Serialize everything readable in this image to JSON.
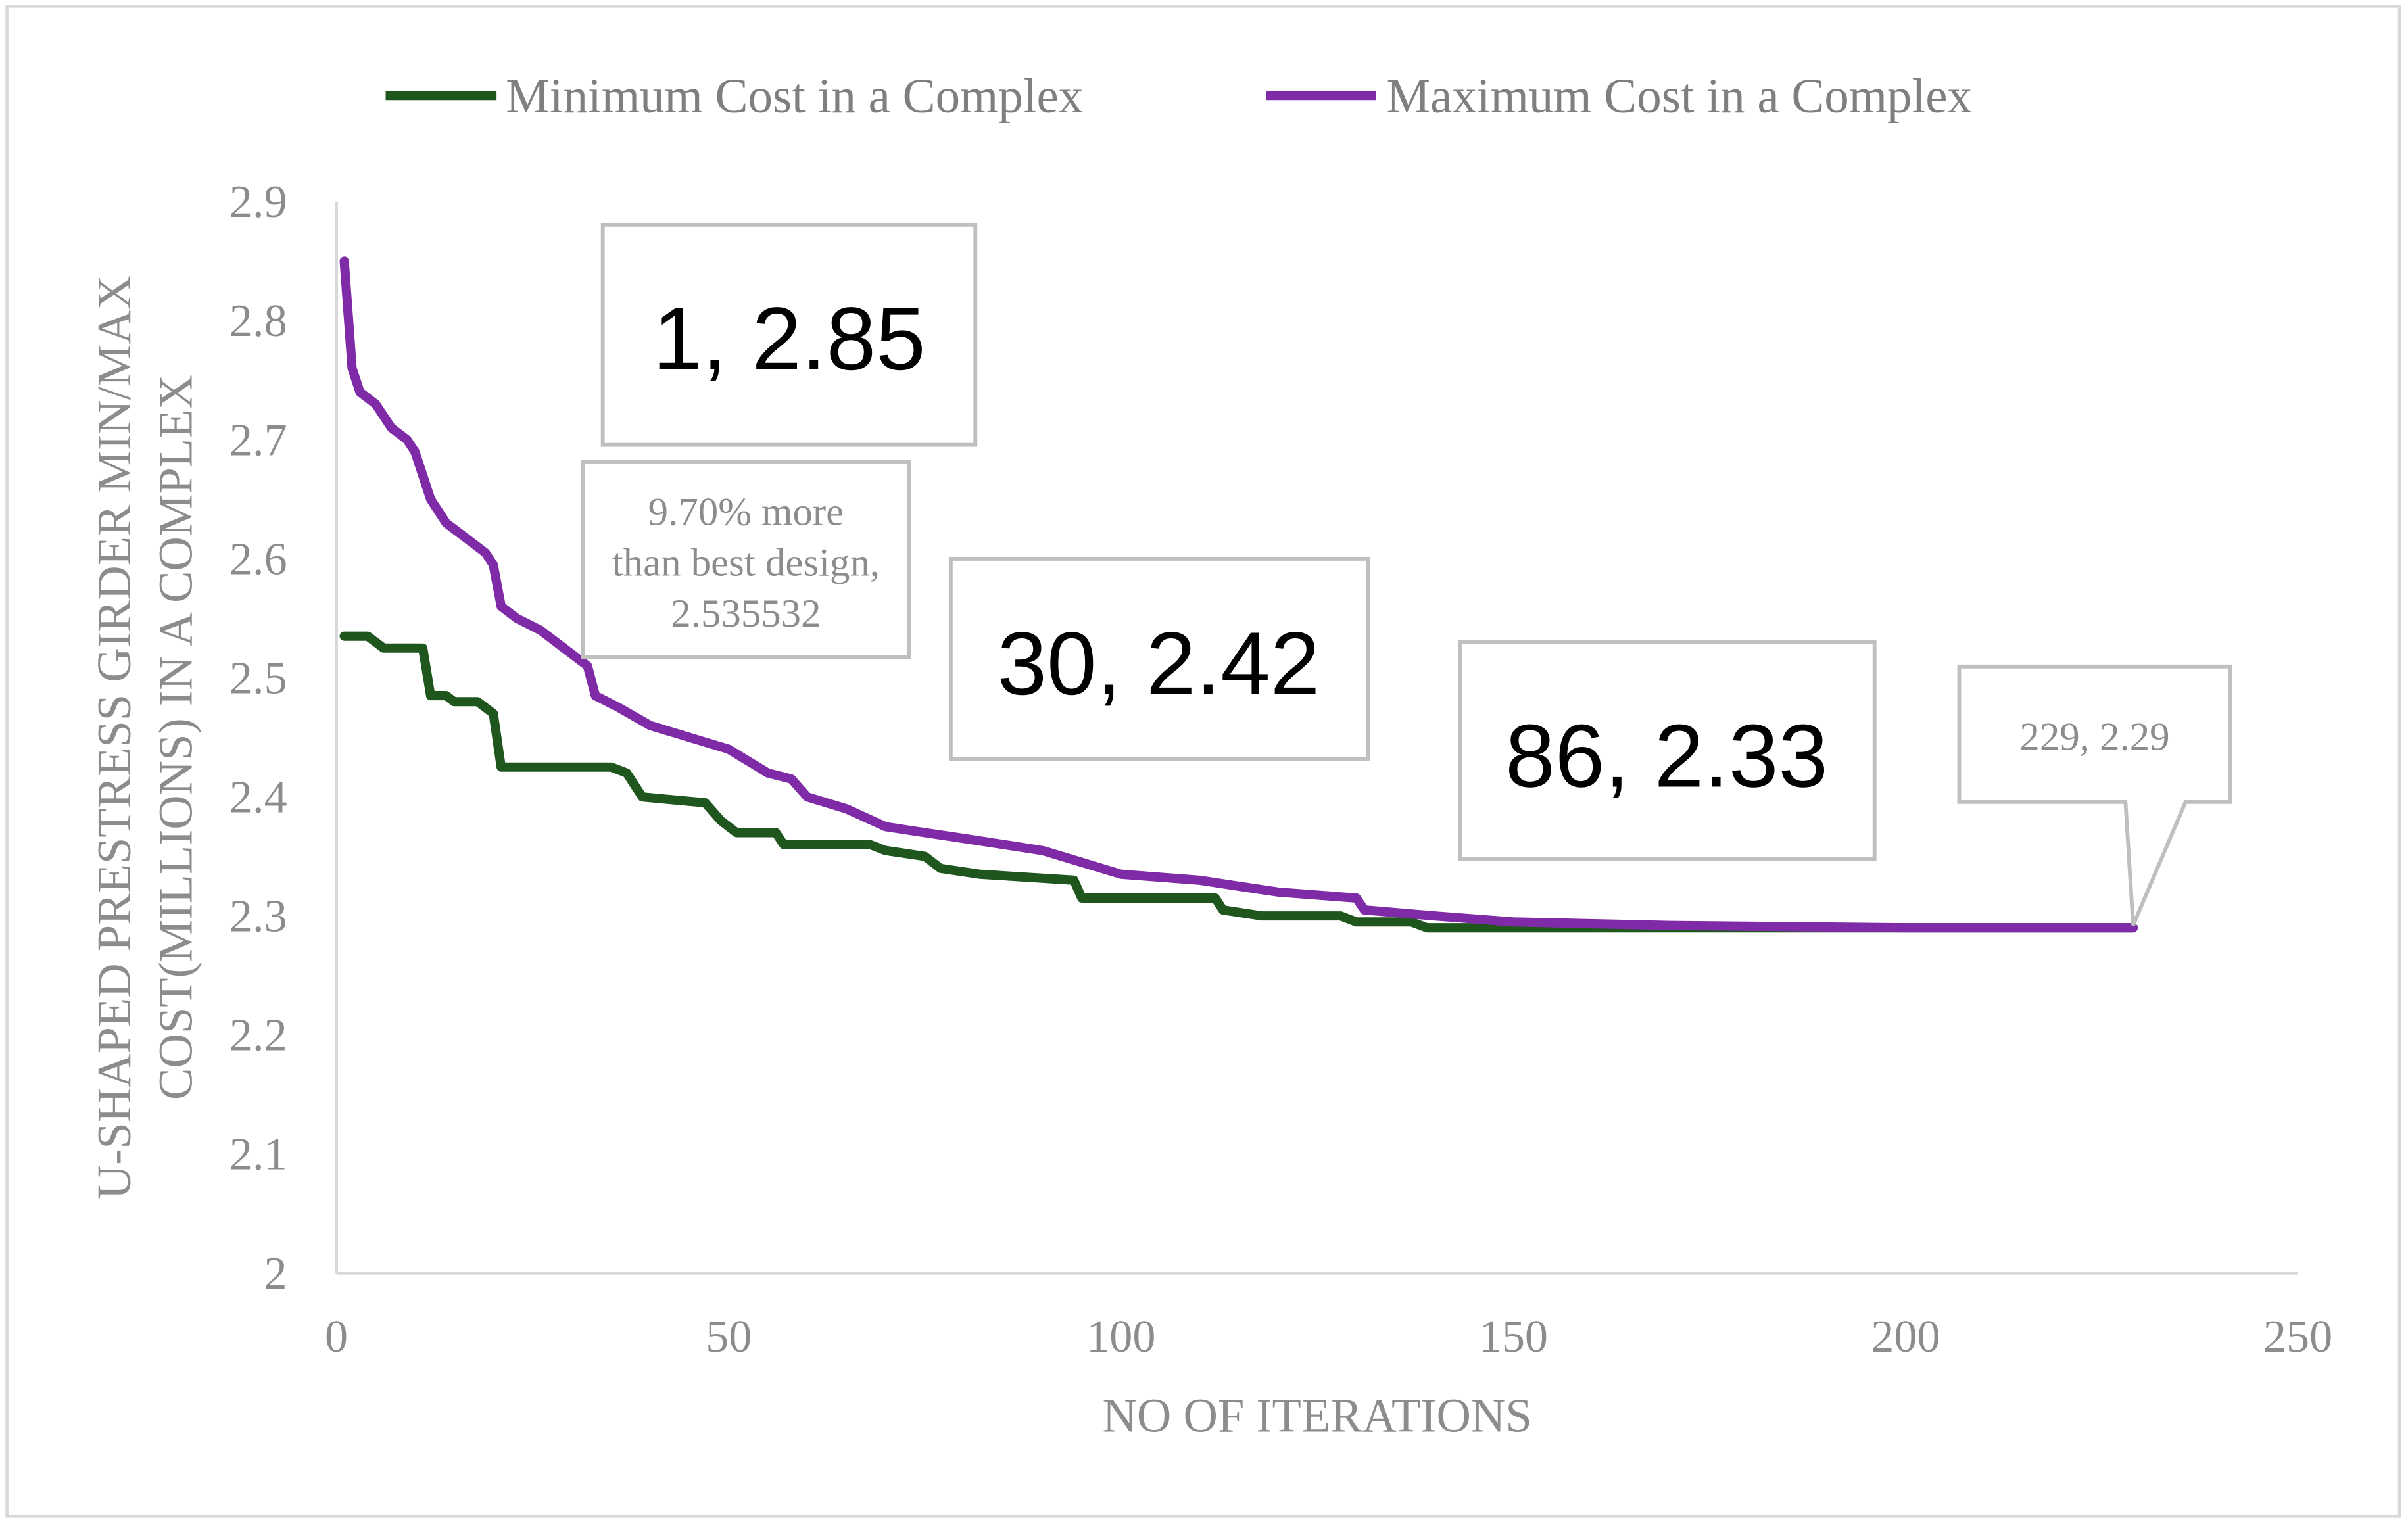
{
  "chart_data": {
    "type": "line",
    "title": "",
    "xlabel": "NO OF ITERATIONS",
    "ylabel_lines": [
      "U-SHAPED PRESTRESS GIRDER MIN/MAX",
      "COST(MILLIONS) IN A COMPLEX"
    ],
    "xlim": [
      0,
      250
    ],
    "ylim": [
      2,
      2.9
    ],
    "x_ticks": [
      "0",
      "50",
      "100",
      "150",
      "200",
      "250"
    ],
    "y_ticks": [
      "2",
      "2.1",
      "2.2",
      "2.3",
      "2.4",
      "2.5",
      "2.6",
      "2.7",
      "2.8",
      "2.9"
    ],
    "grid": false,
    "legend_position": "top",
    "series": [
      {
        "name": "Minimum Cost in a Complex",
        "color": "#1e561e",
        "x": [
          1,
          4,
          6,
          11,
          12,
          14,
          15,
          18,
          20,
          21,
          35,
          37,
          39,
          47,
          49,
          51,
          56,
          57,
          68,
          70,
          75,
          77,
          82,
          94,
          95,
          112,
          113,
          118,
          128,
          130,
          137,
          139,
          229
        ],
        "y": [
          2.535,
          2.535,
          2.525,
          2.525,
          2.485,
          2.485,
          2.48,
          2.48,
          2.47,
          2.425,
          2.425,
          2.42,
          2.4,
          2.395,
          2.38,
          2.37,
          2.37,
          2.36,
          2.36,
          2.355,
          2.35,
          2.34,
          2.335,
          2.33,
          2.315,
          2.315,
          2.305,
          2.3,
          2.3,
          2.295,
          2.295,
          2.29,
          2.29
        ]
      },
      {
        "name": "Maximum Cost in a Complex",
        "color": "#7f2aa6",
        "x": [
          1,
          2,
          3,
          5,
          7,
          9,
          10,
          12,
          14,
          16,
          19,
          20,
          21,
          23,
          26,
          30,
          32,
          33,
          36,
          40,
          45,
          50,
          55,
          58,
          60,
          65,
          70,
          75,
          80,
          85,
          90,
          95,
          100,
          110,
          115,
          120,
          130,
          131,
          140,
          150,
          170,
          200,
          229
        ],
        "y": [
          2.85,
          2.76,
          2.74,
          2.73,
          2.71,
          2.7,
          2.69,
          2.65,
          2.63,
          2.62,
          2.605,
          2.595,
          2.56,
          2.55,
          2.54,
          2.52,
          2.51,
          2.485,
          2.475,
          2.46,
          2.45,
          2.44,
          2.42,
          2.415,
          2.4,
          2.39,
          2.375,
          2.37,
          2.365,
          2.36,
          2.355,
          2.345,
          2.335,
          2.33,
          2.325,
          2.32,
          2.315,
          2.305,
          2.3,
          2.295,
          2.292,
          2.29,
          2.29
        ]
      }
    ],
    "annotations": [
      {
        "text": "1, 2.85"
      },
      {
        "text_lines": [
          "9.70% more",
          "than best design,",
          "2.535532"
        ]
      },
      {
        "text": "30, 2.42"
      },
      {
        "text": "86, 2.33"
      },
      {
        "text": "229, 2.29"
      }
    ]
  }
}
